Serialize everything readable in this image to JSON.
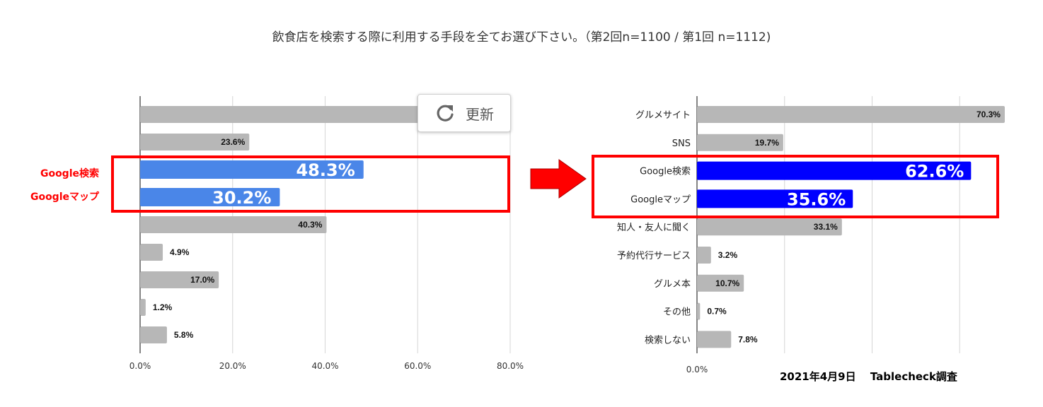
{
  "title": "飲食店を検索する際に利用する手段を全てお選び下さい。（第2回n=1100 / 第1回 n=1112)",
  "refresh_button": {
    "label": "更新",
    "icon": "refresh-icon"
  },
  "source_note": "2021年4月9日　 Tablecheck調査",
  "colors": {
    "bar_default": "#b7b7b7",
    "bar_highlight_left": "#4a86e8",
    "bar_highlight_right": "#0000ff",
    "highlight_box": "#ff0000",
    "arrow": "#ff0000"
  },
  "left_highlight_labels": [
    "Google検索",
    "Googleマップ"
  ],
  "chart_data": [
    {
      "type": "bar",
      "orientation": "horizontal",
      "categories": [
        "",
        "",
        "",
        "",
        "",
        "",
        "",
        "",
        ""
      ],
      "values": [
        null,
        23.6,
        48.3,
        30.2,
        40.3,
        4.9,
        17.0,
        1.2,
        5.8
      ],
      "value_labels": [
        "",
        "23.6%",
        "48.3%",
        "30.2%",
        "40.3%",
        "4.9%",
        "17.0%",
        "1.2%",
        "5.8%"
      ],
      "highlighted": [
        false,
        false,
        true,
        true,
        false,
        false,
        false,
        false,
        false
      ],
      "xlim": [
        0,
        80
      ],
      "xticks": [
        "0.0%",
        "20.0%",
        "40.0%",
        "60.0%",
        "80.0%"
      ],
      "grid": true
    },
    {
      "type": "bar",
      "orientation": "horizontal",
      "categories": [
        "グルメサイト",
        "SNS",
        "Google検索",
        "Googleマップ",
        "知人・友人に聞く",
        "予約代行サービス",
        "グルメ本",
        "その他",
        "検索しない"
      ],
      "values": [
        70.3,
        19.7,
        62.6,
        35.6,
        33.1,
        3.2,
        10.7,
        0.7,
        7.8
      ],
      "value_labels": [
        "70.3%",
        "19.7%",
        "62.6%",
        "35.6%",
        "33.1%",
        "3.2%",
        "10.7%",
        "0.7%",
        "7.8%"
      ],
      "highlighted": [
        false,
        false,
        true,
        true,
        false,
        false,
        false,
        false,
        false
      ],
      "xlim": [
        0,
        80
      ],
      "xticks": [
        "0.0%"
      ],
      "grid": true
    }
  ]
}
